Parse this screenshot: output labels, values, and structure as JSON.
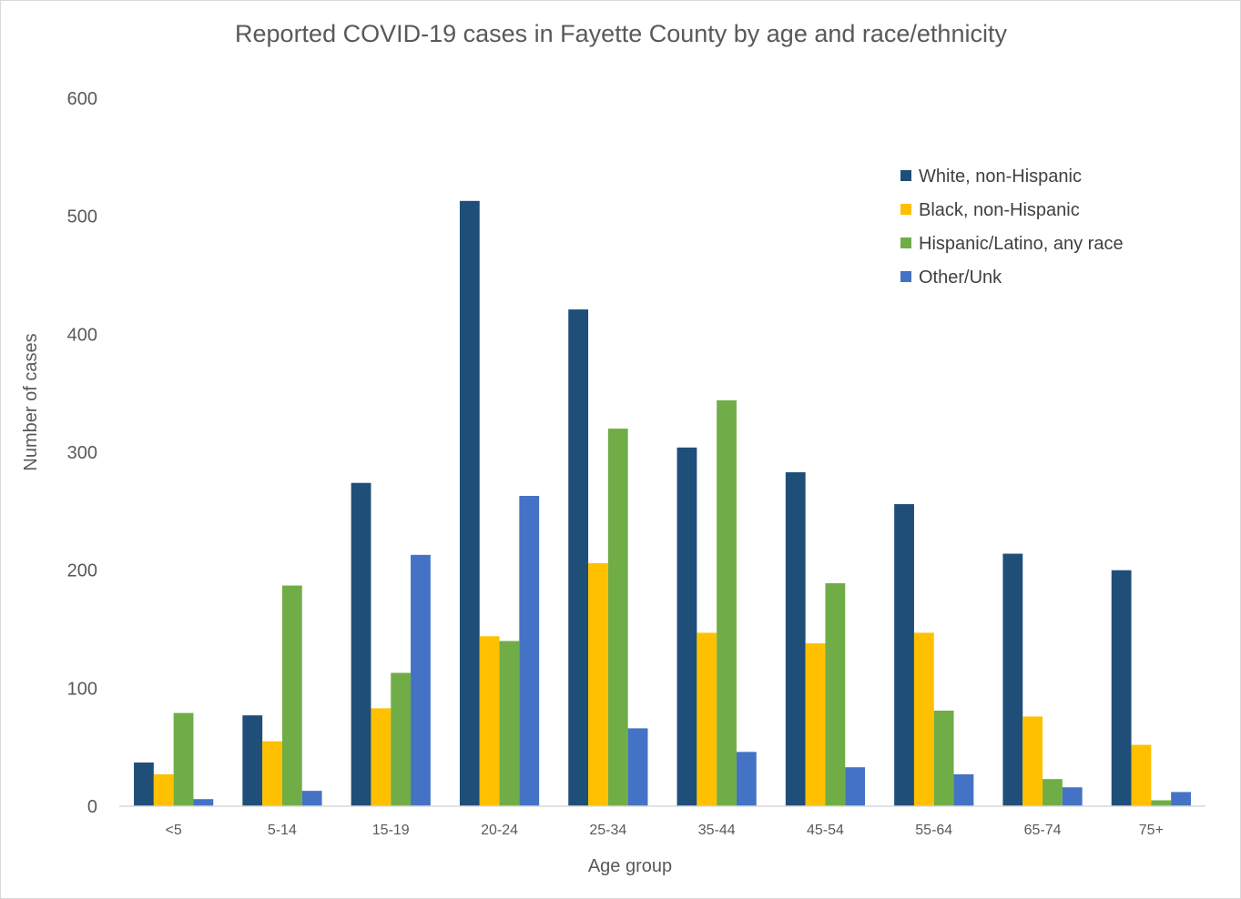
{
  "chart_data": {
    "type": "bar",
    "title": "Reported COVID-19 cases in Fayette County by age and race/ethnicity",
    "xlabel": "Age group",
    "ylabel": "Number of cases",
    "ylim": [
      0,
      600
    ],
    "yticks": [
      "0",
      "100",
      "200",
      "300",
      "400",
      "500",
      "600"
    ],
    "grid": false,
    "legend_position": "top-right",
    "categories": [
      "<5",
      "5-14",
      "15-19",
      "20-24",
      "25-34",
      "35-44",
      "45-54",
      "55-64",
      "65-74",
      "75+"
    ],
    "series": [
      {
        "name": "White, non-Hispanic",
        "color": "#1f4e79",
        "values": [
          37,
          77,
          274,
          513,
          421,
          304,
          283,
          256,
          214,
          200
        ]
      },
      {
        "name": "Black, non-Hispanic",
        "color": "#ffc000",
        "values": [
          27,
          55,
          83,
          144,
          206,
          147,
          138,
          147,
          76,
          52
        ]
      },
      {
        "name": "Hispanic/Latino, any race",
        "color": "#70ad47",
        "values": [
          79,
          187,
          113,
          140,
          320,
          344,
          189,
          81,
          23,
          5
        ]
      },
      {
        "name": "Other/Unk",
        "color": "#4472c4",
        "values": [
          6,
          13,
          213,
          263,
          66,
          46,
          33,
          27,
          16,
          12
        ]
      }
    ]
  }
}
